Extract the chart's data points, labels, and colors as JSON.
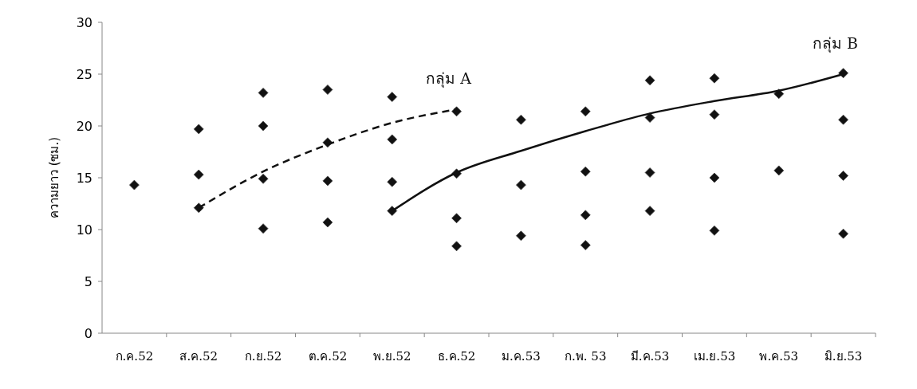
{
  "chart_data": {
    "type": "scatter",
    "ylabel": "ความยาว (ซม.)",
    "categories": [
      "ก.ค.52",
      "ส.ค.52",
      "ก.ย.52",
      "ต.ค.52",
      "พ.ย.52",
      "ธ.ค.52",
      "ม.ค.53",
      "ก.พ. 53",
      "มี.ค.53",
      "เม.ย.53",
      "พ.ค.53",
      "มิ.ย.53"
    ],
    "ylim": [
      0,
      30
    ],
    "yticks": [
      0,
      5,
      10,
      15,
      20,
      25,
      30
    ],
    "grid": false,
    "marker": "diamond",
    "series": [
      {
        "color": "#111111",
        "values": [
          14.3,
          19.7,
          23.2,
          23.5,
          22.8,
          21.4,
          20.6,
          21.4,
          24.4,
          24.6,
          23.1,
          25.1
        ]
      },
      {
        "color": "#111111",
        "values": [
          null,
          15.3,
          20.0,
          18.4,
          18.7,
          15.4,
          14.3,
          15.6,
          20.8,
          21.1,
          15.7,
          20.6
        ]
      },
      {
        "color": "#111111",
        "values": [
          null,
          12.1,
          14.9,
          14.7,
          14.6,
          11.1,
          9.4,
          11.4,
          15.5,
          15.0,
          null,
          15.2
        ]
      },
      {
        "color": "#111111",
        "values": [
          null,
          null,
          10.1,
          10.7,
          11.8,
          8.4,
          null,
          8.5,
          11.8,
          9.9,
          null,
          9.6
        ]
      },
      {
        "type": "line",
        "name": "กลุ่ม A",
        "color": "#111111",
        "line_style": "dashed",
        "marker": "none",
        "values": [
          null,
          12.1,
          15.6,
          18.2,
          20.3,
          21.6,
          null,
          null,
          null,
          null,
          null,
          null
        ]
      },
      {
        "type": "line",
        "name": "กลุ่ม B",
        "color": "#111111",
        "line_style": "solid",
        "marker": "none",
        "values": [
          null,
          null,
          null,
          null,
          11.8,
          15.5,
          17.6,
          19.5,
          21.2,
          22.4,
          23.4,
          25.0
        ]
      }
    ]
  }
}
